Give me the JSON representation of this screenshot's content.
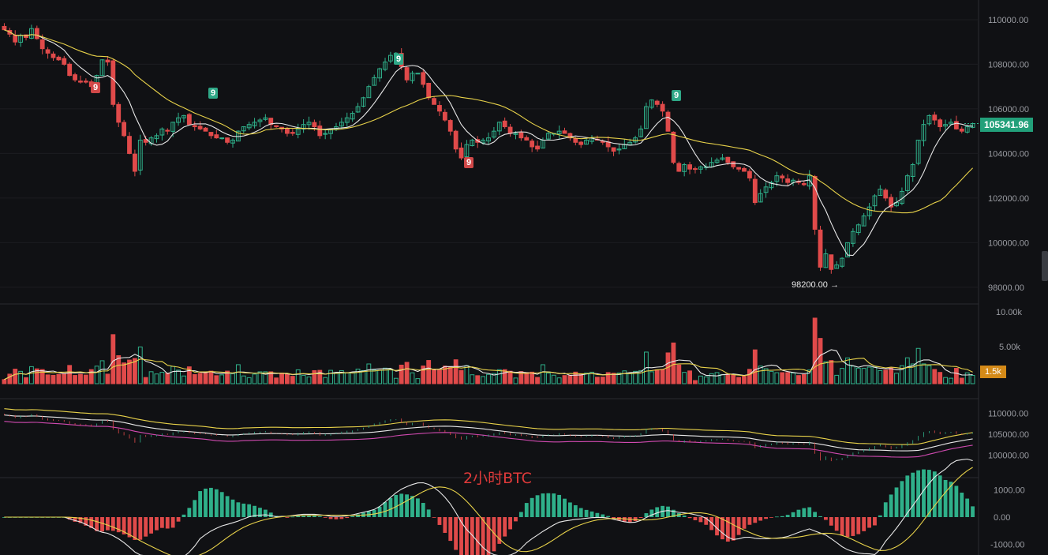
{
  "title": "2小时BTC",
  "low_label": "98200.00",
  "current_price_label": "105341.96",
  "volume_label": "1.5k",
  "td_markers": [
    "9",
    "9",
    "9",
    "9",
    "9"
  ],
  "colors": {
    "up": "#2fb08a",
    "down": "#e04a4a",
    "ma_short": "#e8e8e8",
    "ma_long": "#e8d24a",
    "ma3": "#d04ab0",
    "background": "#101114"
  },
  "chart_data": [
    {
      "type": "candlestick",
      "ylim": [
        97500,
        110600
      ],
      "tick_labels": [
        "110000.00",
        "108000.00",
        "106000.00",
        "104000.00",
        "102000.00",
        "100000.00",
        "98000.00"
      ],
      "tick_values": [
        110000,
        108000,
        106000,
        104000,
        102000,
        100000,
        98000
      ],
      "close_series": [
        109550,
        109350,
        109000,
        109300,
        109200,
        109600,
        109150,
        108700,
        108500,
        108300,
        108200,
        108000,
        107500,
        107300,
        107200,
        107200,
        107000,
        107500,
        108200,
        108100,
        106200,
        105400,
        104800,
        104000,
        103200,
        104600,
        104500,
        104700,
        104800,
        105100,
        105000,
        105400,
        105600,
        105700,
        105300,
        105200,
        105100,
        105000,
        104800,
        104700,
        104700,
        104500,
        104600,
        105000,
        105200,
        105300,
        105400,
        105500,
        105600,
        105300,
        105200,
        105100,
        104900,
        104900,
        105100,
        105300,
        105400,
        105200,
        104800,
        104900,
        105100,
        105200,
        105400,
        105600,
        105800,
        106100,
        106500,
        107000,
        107400,
        107800,
        108100,
        108400,
        108500,
        107900,
        107300,
        107600,
        107600,
        107100,
        106500,
        106200,
        105900,
        105500,
        105000,
        104200,
        103800,
        104400,
        104600,
        104500,
        104600,
        104700,
        105000,
        105400,
        105200,
        104900,
        104900,
        104700,
        104600,
        104300,
        104200,
        104600,
        104900,
        104900,
        105000,
        104900,
        104700,
        104500,
        104400,
        104600,
        104700,
        104600,
        104500,
        104300,
        104100,
        104200,
        104400,
        104500,
        104700,
        105100,
        106100,
        106400,
        106200,
        105900,
        105000,
        103600,
        103200,
        103500,
        103300,
        103300,
        103400,
        103400,
        103600,
        103700,
        103800,
        103600,
        103400,
        103300,
        103200,
        102900,
        101800,
        102200,
        102500,
        102700,
        103000,
        102900,
        102700,
        102800,
        102700,
        102600,
        103000,
        100600,
        98900,
        99500,
        98800,
        99000,
        99300,
        100000,
        100500,
        100800,
        101200,
        101600,
        102100,
        102400,
        102000,
        101600,
        101800,
        102300,
        103000,
        103500,
        104600,
        105300,
        105700,
        105500,
        105200,
        105300,
        105400,
        105100,
        105000,
        105200,
        105341.96
      ],
      "volume_ticks": [
        "10.00k",
        "5.00k"
      ]
    },
    {
      "type": "line",
      "name": "",
      "tick_labels": [
        "110000.00",
        "105000.00",
        "100000.00"
      ],
      "tick_values": [
        110000,
        105000,
        100000
      ]
    },
    {
      "type": "bar",
      "tick_labels": [
        "1000.00",
        "0.00",
        "-1000.00"
      ],
      "tick_values": [
        1000,
        0,
        -1000
      ]
    }
  ]
}
